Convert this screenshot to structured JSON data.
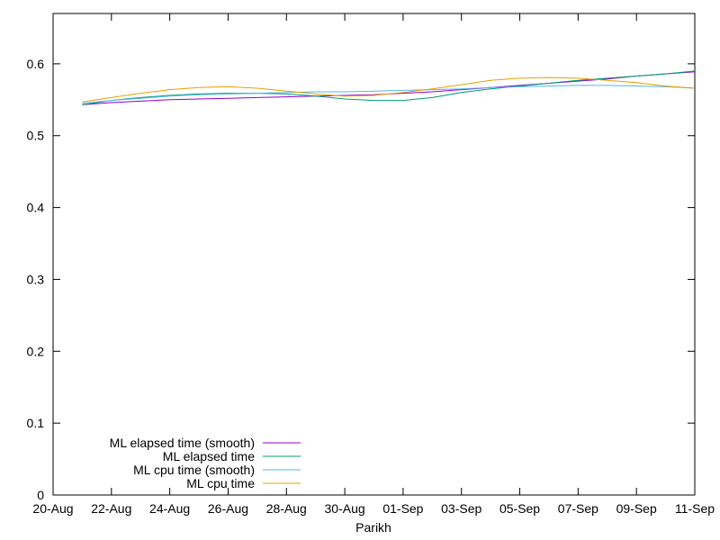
{
  "chart_data": {
    "type": "line",
    "title": "",
    "xlabel": "Parikh",
    "ylabel": "",
    "xlim": [
      "20-Aug",
      "11-Sep"
    ],
    "ylim": [
      0,
      0.67
    ],
    "x_ticks": [
      "20-Aug",
      "22-Aug",
      "24-Aug",
      "26-Aug",
      "28-Aug",
      "30-Aug",
      "01-Sep",
      "03-Sep",
      "05-Sep",
      "07-Sep",
      "09-Sep",
      "11-Sep"
    ],
    "y_ticks": [
      "0",
      "0.1",
      "0.2",
      "0.3",
      "0.4",
      "0.5",
      "0.6"
    ],
    "grid": false,
    "legend_position": "bottom-left",
    "x": [
      "21-Aug",
      "22-Aug",
      "23-Aug",
      "24-Aug",
      "25-Aug",
      "26-Aug",
      "27-Aug",
      "28-Aug",
      "29-Aug",
      "30-Aug",
      "31-Aug",
      "01-Sep",
      "02-Sep",
      "03-Sep",
      "04-Sep",
      "05-Sep",
      "06-Sep",
      "07-Sep",
      "08-Sep",
      "09-Sep",
      "10-Sep",
      "11-Sep"
    ],
    "series": [
      {
        "name": "ML elapsed time (smooth)",
        "color": "#9400d3",
        "values": [
          0.543,
          0.546,
          0.548,
          0.55,
          0.551,
          0.552,
          0.553,
          0.554,
          0.555,
          0.556,
          0.557,
          0.559,
          0.561,
          0.564,
          0.567,
          0.57,
          0.573,
          0.576,
          0.579,
          0.583,
          0.586,
          0.589
        ]
      },
      {
        "name": "ML elapsed time",
        "color": "#009e73",
        "values": [
          0.543,
          0.549,
          0.553,
          0.556,
          0.558,
          0.559,
          0.559,
          0.558,
          0.555,
          0.551,
          0.549,
          0.549,
          0.553,
          0.56,
          0.565,
          0.569,
          0.573,
          0.577,
          0.58,
          0.583,
          0.586,
          0.59
        ]
      },
      {
        "name": "ML cpu time (smooth)",
        "color": "#56b4e9",
        "values": [
          0.545,
          0.549,
          0.552,
          0.555,
          0.557,
          0.558,
          0.559,
          0.56,
          0.561,
          0.561,
          0.562,
          0.563,
          0.564,
          0.565,
          0.567,
          0.568,
          0.569,
          0.57,
          0.57,
          0.569,
          0.568,
          0.566
        ]
      },
      {
        "name": "ML cpu time",
        "color": "#e69f00",
        "values": [
          0.547,
          0.553,
          0.559,
          0.564,
          0.567,
          0.568,
          0.566,
          0.562,
          0.558,
          0.555,
          0.556,
          0.56,
          0.565,
          0.571,
          0.577,
          0.58,
          0.581,
          0.58,
          0.577,
          0.574,
          0.569,
          0.566
        ]
      }
    ]
  }
}
